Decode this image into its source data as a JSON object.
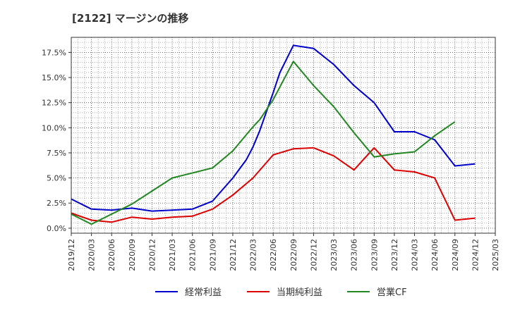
{
  "chart_data": {
    "type": "line",
    "title": "[2122]  マージンの推移",
    "xlabel": "",
    "ylabel": "",
    "grid": true,
    "legend_position": "bottom",
    "x_ticks": [
      "2019/12",
      "2020/03",
      "2020/06",
      "2020/09",
      "2020/12",
      "2021/03",
      "2021/06",
      "2021/09",
      "2021/12",
      "2022/03",
      "2022/06",
      "2022/09",
      "2022/12",
      "2023/03",
      "2023/06",
      "2023/09",
      "2023/12",
      "2024/03",
      "2024/06",
      "2024/09",
      "2024/12",
      "2025/03"
    ],
    "y_ticks": [
      "0.0%",
      "2.5%",
      "5.0%",
      "7.5%",
      "10.0%",
      "12.5%",
      "15.0%",
      "17.5%"
    ],
    "ylim": [
      -0.5,
      19.0
    ],
    "series": [
      {
        "name": "経常利益",
        "color": "#0000cc",
        "points": [
          [
            "2019/12",
            2.9
          ],
          [
            "2020/03",
            1.9
          ],
          [
            "2020/06",
            1.8
          ],
          [
            "2020/09",
            2.0
          ],
          [
            "2020/12",
            1.7
          ],
          [
            "2021/03",
            1.8
          ],
          [
            "2021/06",
            1.9
          ],
          [
            "2021/09",
            2.7
          ],
          [
            "2021/12",
            5.0
          ],
          [
            "2022/02",
            6.8
          ],
          [
            "2022/03",
            8.1
          ],
          [
            "2022/04",
            9.7
          ],
          [
            "2022/06",
            13.5
          ],
          [
            "2022/07",
            15.5
          ],
          [
            "2022/09",
            18.2
          ],
          [
            "2022/12",
            17.9
          ],
          [
            "2023/03",
            16.3
          ],
          [
            "2023/06",
            14.2
          ],
          [
            "2023/09",
            12.5
          ],
          [
            "2023/12",
            9.6
          ],
          [
            "2024/03",
            9.6
          ],
          [
            "2024/06",
            8.8
          ],
          [
            "2024/09",
            6.2
          ],
          [
            "2024/12",
            6.4
          ]
        ]
      },
      {
        "name": "当期純利益",
        "color": "#dd0000",
        "points": [
          [
            "2019/12",
            1.5
          ],
          [
            "2020/03",
            0.8
          ],
          [
            "2020/06",
            0.6
          ],
          [
            "2020/09",
            1.1
          ],
          [
            "2020/12",
            0.9
          ],
          [
            "2021/03",
            1.1
          ],
          [
            "2021/06",
            1.2
          ],
          [
            "2021/09",
            1.9
          ],
          [
            "2021/12",
            3.3
          ],
          [
            "2022/03",
            5.0
          ],
          [
            "2022/06",
            7.3
          ],
          [
            "2022/09",
            7.9
          ],
          [
            "2022/12",
            8.0
          ],
          [
            "2023/03",
            7.2
          ],
          [
            "2023/06",
            5.8
          ],
          [
            "2023/09",
            8.0
          ],
          [
            "2023/12",
            5.8
          ],
          [
            "2024/03",
            5.6
          ],
          [
            "2024/06",
            5.0
          ],
          [
            "2024/09",
            0.8
          ],
          [
            "2024/12",
            1.0
          ]
        ]
      },
      {
        "name": "営業CF",
        "color": "#228822",
        "points": [
          [
            "2019/12",
            1.4
          ],
          [
            "2020/03",
            0.4
          ],
          [
            "2020/06",
            1.4
          ],
          [
            "2020/09",
            2.4
          ],
          [
            "2020/12",
            3.7
          ],
          [
            "2021/03",
            5.0
          ],
          [
            "2021/06",
            5.5
          ],
          [
            "2021/09",
            6.0
          ],
          [
            "2021/12",
            7.7
          ],
          [
            "2022/03",
            10.1
          ],
          [
            "2022/04",
            10.8
          ],
          [
            "2022/06",
            12.8
          ],
          [
            "2022/09",
            16.6
          ],
          [
            "2022/12",
            14.2
          ],
          [
            "2023/03",
            12.1
          ],
          [
            "2023/06",
            9.5
          ],
          [
            "2023/09",
            7.1
          ],
          [
            "2023/12",
            7.4
          ],
          [
            "2024/03",
            7.6
          ],
          [
            "2024/06",
            9.2
          ],
          [
            "2024/09",
            10.6
          ]
        ]
      }
    ]
  }
}
